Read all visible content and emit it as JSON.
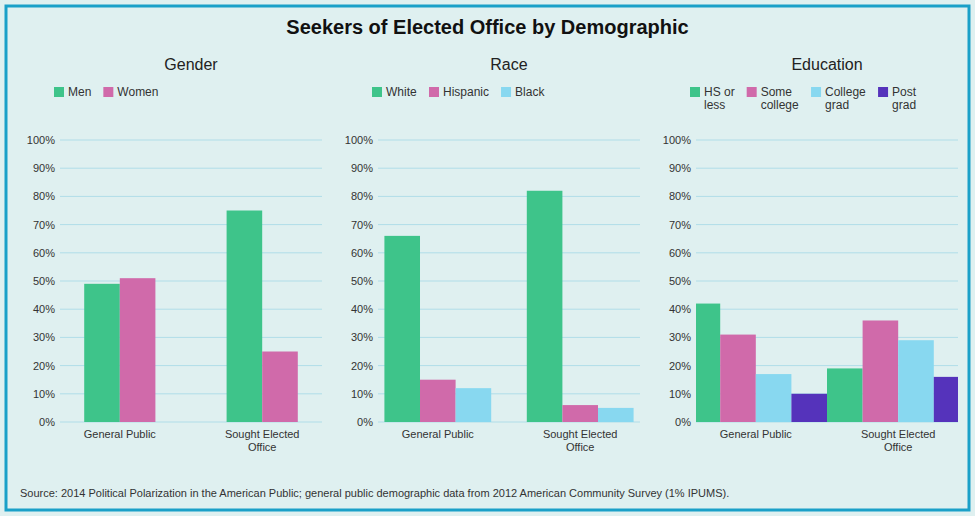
{
  "title": "Seekers of Elected Office by Demographic",
  "annotations": [
    "Source: 2014 Political Polarization in the American Public; general public demographic data from 2012 American Community Survey (1% IPUMS)."
  ],
  "chart_data": [
    {
      "type": "bar",
      "title": "Gender",
      "categories": [
        "General Public",
        "Sought Elected\nOffice"
      ],
      "series": [
        {
          "name": "Men",
          "color": "#3ec48a",
          "values": [
            49,
            75
          ]
        },
        {
          "name": "Women",
          "color": "#d06aaa",
          "values": [
            51,
            25
          ]
        }
      ],
      "ylim": [
        0,
        100
      ],
      "yticks": [
        {
          "value": 0,
          "label": "0%"
        },
        {
          "value": 10,
          "label": "10%"
        },
        {
          "value": 20,
          "label": "20%"
        },
        {
          "value": 30,
          "label": "30%"
        },
        {
          "value": 40,
          "label": "40%"
        },
        {
          "value": 50,
          "label": "50%"
        },
        {
          "value": 60,
          "label": "60%"
        },
        {
          "value": 70,
          "label": "70%"
        },
        {
          "value": 80,
          "label": "80%"
        },
        {
          "value": 90,
          "label": "90%"
        },
        {
          "value": 100,
          "label": "100%"
        }
      ],
      "grid": true,
      "legend": "top"
    },
    {
      "type": "bar",
      "title": "Race",
      "categories": [
        "General Public",
        "Sought Elected\nOffice"
      ],
      "series": [
        {
          "name": "White",
          "color": "#3ec48a",
          "values": [
            66,
            82
          ]
        },
        {
          "name": "Hispanic",
          "color": "#d06aaa",
          "values": [
            15,
            6
          ]
        },
        {
          "name": "Black",
          "color": "#88d8f0",
          "values": [
            12,
            5
          ]
        }
      ],
      "ylim": [
        0,
        100
      ],
      "yticks": [
        {
          "value": 0,
          "label": "0%"
        },
        {
          "value": 10,
          "label": "10%"
        },
        {
          "value": 20,
          "label": "20%"
        },
        {
          "value": 30,
          "label": "30%"
        },
        {
          "value": 40,
          "label": "40%"
        },
        {
          "value": 50,
          "label": "50%"
        },
        {
          "value": 60,
          "label": "60%"
        },
        {
          "value": 70,
          "label": "70%"
        },
        {
          "value": 80,
          "label": "80%"
        },
        {
          "value": 90,
          "label": "90%"
        },
        {
          "value": 100,
          "label": "100%"
        }
      ],
      "grid": true,
      "legend": "top"
    },
    {
      "type": "bar",
      "title": "Education",
      "categories": [
        "General Public",
        "Sought Elected\nOffice"
      ],
      "series": [
        {
          "name": "HS or\nless",
          "color": "#3ec48a",
          "values": [
            42,
            19
          ]
        },
        {
          "name": "Some\ncollege",
          "color": "#d06aaa",
          "values": [
            31,
            36
          ]
        },
        {
          "name": "College\ngrad",
          "color": "#88d8f0",
          "values": [
            17,
            29
          ]
        },
        {
          "name": "Post\ngrad",
          "color": "#5533bb",
          "values": [
            10,
            16
          ]
        }
      ],
      "ylim": [
        0,
        100
      ],
      "yticks": [
        {
          "value": 0,
          "label": "0%"
        },
        {
          "value": 10,
          "label": "10%"
        },
        {
          "value": 20,
          "label": "20%"
        },
        {
          "value": 30,
          "label": "30%"
        },
        {
          "value": 40,
          "label": "40%"
        },
        {
          "value": 50,
          "label": "50%"
        },
        {
          "value": 60,
          "label": "60%"
        },
        {
          "value": 70,
          "label": "70%"
        },
        {
          "value": 80,
          "label": "80%"
        },
        {
          "value": 90,
          "label": "90%"
        },
        {
          "value": 100,
          "label": "100%"
        }
      ],
      "grid": true,
      "legend": "top"
    }
  ]
}
